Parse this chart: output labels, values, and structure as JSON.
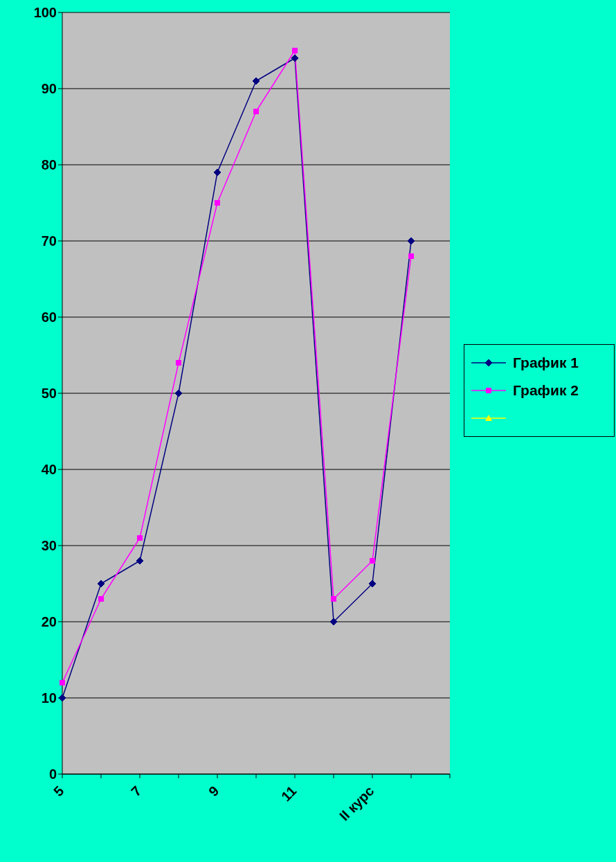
{
  "chart_data": {
    "type": "line",
    "categories": [
      "5",
      null,
      "7",
      null,
      "9",
      null,
      "11",
      null,
      "II курс",
      null,
      null
    ],
    "series": [
      {
        "name": "График 1",
        "color": "#000080",
        "marker": "diamond",
        "values": [
          10,
          25,
          28,
          50,
          79,
          91,
          94,
          20,
          25,
          70,
          null
        ]
      },
      {
        "name": "График 2",
        "color": "#ff00ff",
        "marker": "square",
        "values": [
          12,
          23,
          31,
          54,
          75,
          87,
          95,
          23,
          28,
          68,
          null
        ]
      }
    ],
    "ylim": [
      0,
      100
    ],
    "yticks": [
      0,
      10,
      20,
      30,
      40,
      50,
      60,
      70,
      80,
      90,
      100
    ],
    "grid": "y",
    "legend": "right"
  }
}
